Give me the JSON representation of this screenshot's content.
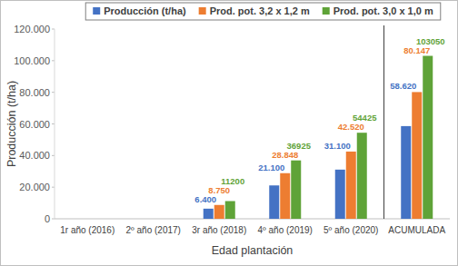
{
  "chart_data": {
    "type": "bar",
    "categories": [
      "1r año (2016)",
      "2º año (2017)",
      "3r año (2018)",
      "4º año (2019)",
      "5º año (2020)",
      "ACUMULADA"
    ],
    "series": [
      {
        "name": "Producción (t/ha)",
        "color": "#4472c4",
        "values": [
          null,
          null,
          6400,
          21100,
          31100,
          58620
        ],
        "value_labels": [
          null,
          null,
          "6.400",
          "21.100",
          "31.100",
          "58.620"
        ]
      },
      {
        "name": "Prod. pot. 3,2 x 1,2 m",
        "color": "#ed7d31",
        "values": [
          null,
          null,
          8750,
          28848,
          42520,
          80147
        ],
        "value_labels": [
          null,
          null,
          "8.750",
          "28.848",
          "42.520",
          "80.147"
        ]
      },
      {
        "name": "Prod. pot. 3,0 x 1,0 m",
        "color": "#5fa338",
        "values": [
          null,
          null,
          11200,
          36925,
          54425,
          103050
        ]
      }
    ],
    "x_label": "Edad plantación",
    "y_label": "Producción (t/ha)",
    "ylim": [
      0,
      120000
    ],
    "yticks": [
      0,
      {
        "value": 20000,
        "label": "20.000"
      },
      {
        "value": 40000,
        "label": "40.000"
      },
      {
        "value": 60000,
        "label": "60.000"
      },
      {
        "value": 80000,
        "label": "80.000"
      },
      {
        "value": 100000,
        "label": "100.000"
      },
      {
        "value": 120000,
        "label": "120.000"
      }
    ],
    "grid": false,
    "legend": "top",
    "data_labels": true
  }
}
